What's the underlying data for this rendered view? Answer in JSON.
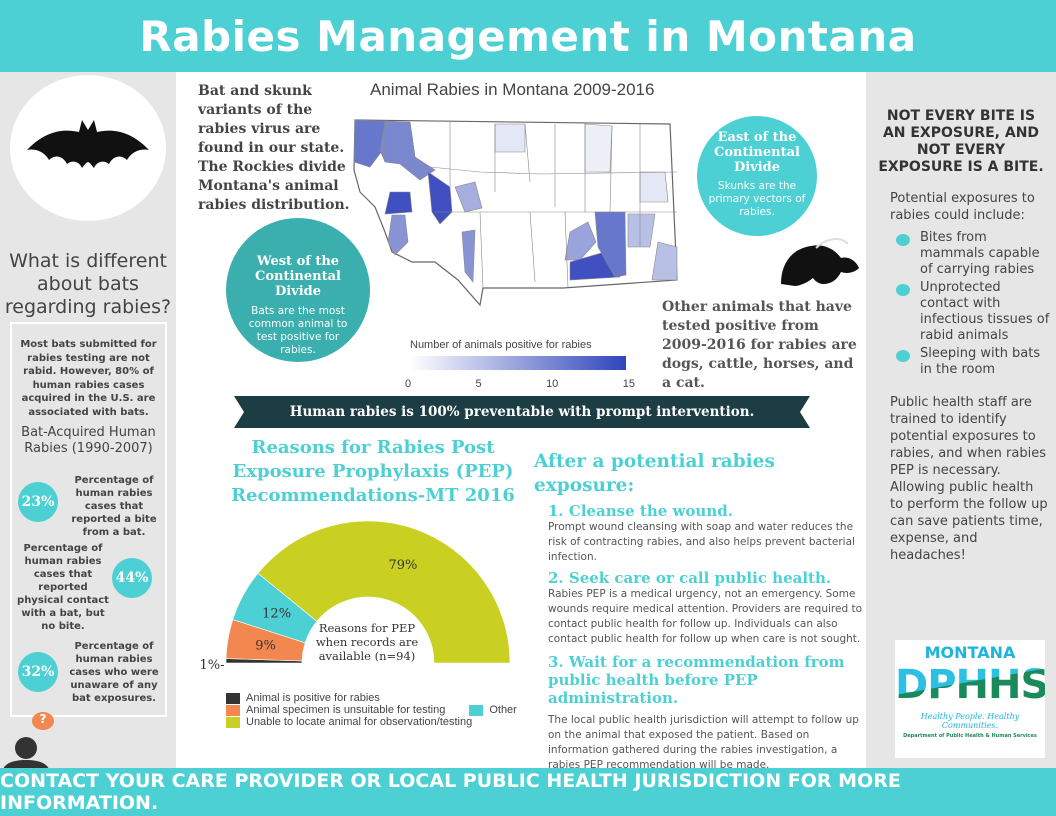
{
  "title": "Rabies Management in Montana",
  "footer": "CONTACT YOUR CARE PROVIDER OR LOCAL PUBLIC HEALTH JURISDICTION FOR MORE INFORMATION.",
  "colors": {
    "teal": "#4dd0d4",
    "dark_teal": "#3aafad",
    "banner": "#1d3d44",
    "map_max": "#2f45bb"
  },
  "left": {
    "question": "What is different about bats regarding rabies?",
    "intro": "Most bats submitted for rabies testing are not rabid.  However, 80% of human rabies cases acquired in the U.S. are associated with bats.",
    "stats_title": "Bat-Acquired Human Rabies (1990-2007)",
    "stats": [
      {
        "value": "23%",
        "text": "Percentage of human rabies cases that reported a bite from a bat."
      },
      {
        "value": "44%",
        "text": "Percentage of human rabies cases that reported physical contact with a bat, but no bite."
      },
      {
        "value": "32%",
        "text": "Percentage of human rabies cases who were unaware of any bat exposures."
      }
    ],
    "bubble": "?"
  },
  "map": {
    "intro": "Bat and skunk variants of the rabies virus are found in our state. The Rockies divide Montana's animal rabies distribution.",
    "title": "Animal Rabies in Montana 2009-2016",
    "legend_title": "Number of animals positive for rabies",
    "legend_ticks": [
      "0",
      "5",
      "10",
      "15"
    ],
    "west": {
      "title": "West of the Continental Divide",
      "text": "Bats are the most common animal to test positive for rabies."
    },
    "east": {
      "title": "East of the Continental Divide",
      "text": "Skunks are the primary vectors of rabies."
    },
    "other": "Other animals that have tested positive from 2009-2016 for rabies are dogs, cattle, horses, and a cat."
  },
  "banner": "Human rabies is 100% preventable with prompt intervention.",
  "chart_data": {
    "type": "pie",
    "variant": "semi-donut",
    "title": "Reasons for Rabies Post Exposure Prophylaxis (PEP) Recommendations-MT 2016",
    "center_label": "Reasons for PEP when records are available (n=94)",
    "slices": [
      {
        "name": "Animal is positive for rabies",
        "value": 1,
        "label": "1%",
        "color": "#333333"
      },
      {
        "name": "Animal specimen is unsuitable for testing",
        "value": 9,
        "label": "9%",
        "color": "#f2874f"
      },
      {
        "name": "Other",
        "value": 12,
        "label": "12%",
        "color": "#4dd0d4"
      },
      {
        "name": "Unable to locate animal for observation/testing",
        "value": 79,
        "label": "79%",
        "color": "#c9d021"
      }
    ],
    "legend_placement": "bottom"
  },
  "steps": {
    "title": "After a potential rabies exposure:",
    "items": [
      {
        "heading": "1.  Cleanse the wound.",
        "text": "Prompt wound cleansing with soap and water reduces the risk of contracting rabies, and also helps prevent bacterial infection."
      },
      {
        "heading": "2.  Seek care or call public health.",
        "text": "Rabies PEP is a medical urgency, not an emergency.  Some wounds require medical attention.  Providers are required to contact public health for follow up.  Individuals can also contact public health for follow up when care is not sought."
      },
      {
        "heading": "3.  Wait for a recommendation from public health before PEP administration.",
        "text": "The local public health jurisdiction will attempt to follow up on the animal that exposed the patient.  Based on information gathered during the rabies investigation, a rabies PEP recommendation will be made."
      }
    ]
  },
  "right": {
    "heading": "NOT EVERY BITE IS AN EXPOSURE, AND NOT EVERY EXPOSURE IS A BITE.",
    "intro": "Potential exposures to rabies could include:",
    "bullets": [
      "Bites from mammals capable of carrying rabies",
      "Unprotected contact with infectious tissues of rabid animals",
      "Sleeping with bats in the room"
    ],
    "text": "Public health staff are trained to identify potential exposures to rabies, and when rabies PEP is necessary.  Allowing public health to perform the follow up can save patients time, expense, and headaches!",
    "logo": {
      "top": "MONTANA",
      "main": "DPHHS",
      "tagline": "Healthy People. Healthy Communities.",
      "dept": "Department of Public Health & Human Services"
    }
  }
}
